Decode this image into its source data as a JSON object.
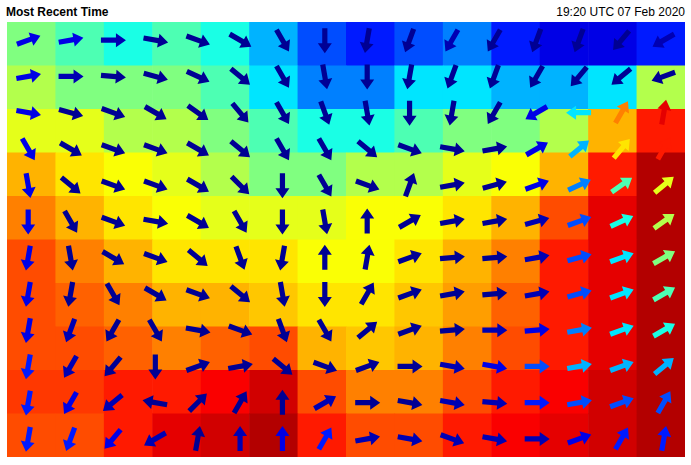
{
  "chart_data": {
    "type": "vector_field",
    "title": "Most Recent Time",
    "subtitle": "19:20 UTC 07 Feb 2020",
    "tick_labels": false,
    "field": [
      [
        0.5,
        0.45,
        0.4,
        0.45,
        0.4,
        0.3,
        0.2,
        0.15,
        0.2,
        0.25,
        0.15,
        0.1,
        0.1,
        0.15
      ],
      [
        0.55,
        0.5,
        0.5,
        0.5,
        0.45,
        0.35,
        0.25,
        0.25,
        0.35,
        0.35,
        0.3,
        0.3,
        0.35,
        0.55
      ],
      [
        0.6,
        0.6,
        0.55,
        0.55,
        0.5,
        0.45,
        0.4,
        0.4,
        0.45,
        0.5,
        0.5,
        0.55,
        0.7,
        0.85
      ],
      [
        0.7,
        0.65,
        0.62,
        0.6,
        0.55,
        0.5,
        0.5,
        0.55,
        0.55,
        0.6,
        0.62,
        0.7,
        0.85,
        0.95
      ],
      [
        0.75,
        0.7,
        0.65,
        0.62,
        0.6,
        0.6,
        0.6,
        0.62,
        0.62,
        0.65,
        0.7,
        0.8,
        0.9,
        0.95
      ],
      [
        0.8,
        0.75,
        0.7,
        0.65,
        0.65,
        0.65,
        0.62,
        0.62,
        0.65,
        0.7,
        0.75,
        0.85,
        0.9,
        0.95
      ],
      [
        0.8,
        0.78,
        0.75,
        0.7,
        0.7,
        0.68,
        0.65,
        0.65,
        0.68,
        0.72,
        0.78,
        0.85,
        0.9,
        0.95
      ],
      [
        0.8,
        0.8,
        0.78,
        0.75,
        0.78,
        0.8,
        0.7,
        0.68,
        0.7,
        0.75,
        0.8,
        0.85,
        0.9,
        0.95
      ],
      [
        0.82,
        0.82,
        0.85,
        0.85,
        0.88,
        0.92,
        0.8,
        0.75,
        0.75,
        0.8,
        0.85,
        0.88,
        0.92,
        0.95
      ],
      [
        0.8,
        0.8,
        0.85,
        0.9,
        0.92,
        0.95,
        0.85,
        0.8,
        0.8,
        0.85,
        0.88,
        0.9,
        0.92,
        0.95
      ]
    ],
    "vectors": {
      "angle": [
        [
          20,
          10,
          0,
          -10,
          -20,
          -30,
          -60,
          -90,
          -100,
          -110,
          -120,
          -120,
          -110,
          -110,
          -130,
          -150
        ],
        [
          10,
          0,
          -5,
          -15,
          -25,
          -40,
          -60,
          -80,
          -90,
          -100,
          -110,
          -110,
          -120,
          -130,
          -140,
          -160
        ],
        [
          -10,
          -15,
          -20,
          -30,
          -35,
          -50,
          -60,
          -70,
          -80,
          -90,
          -100,
          -120,
          -150,
          180,
          60,
          80
        ],
        [
          -60,
          -30,
          -20,
          -20,
          -30,
          -40,
          -60,
          -60,
          -40,
          -20,
          -10,
          10,
          30,
          40,
          50,
          60
        ],
        [
          -80,
          -40,
          -20,
          -20,
          -30,
          -45,
          -90,
          -60,
          -20,
          70,
          10,
          15,
          20,
          25,
          35,
          40
        ],
        [
          -90,
          -60,
          -20,
          -10,
          -30,
          -60,
          -90,
          -80,
          90,
          30,
          10,
          10,
          15,
          20,
          25,
          35
        ],
        [
          -100,
          -80,
          -30,
          -20,
          -40,
          -70,
          -100,
          90,
          80,
          20,
          5,
          5,
          10,
          15,
          20,
          30
        ],
        [
          -100,
          -100,
          -60,
          -30,
          -20,
          -40,
          -80,
          -90,
          60,
          20,
          10,
          5,
          10,
          15,
          20,
          30
        ],
        [
          -100,
          -110,
          -120,
          -60,
          -10,
          -20,
          -70,
          -60,
          40,
          20,
          5,
          0,
          5,
          10,
          20,
          30
        ],
        [
          -100,
          -120,
          -130,
          -90,
          20,
          10,
          -40,
          -20,
          20,
          0,
          -10,
          -10,
          0,
          10,
          20,
          40
        ],
        [
          -100,
          -120,
          -140,
          170,
          45,
          60,
          90,
          30,
          0,
          -10,
          -10,
          -5,
          0,
          10,
          20,
          60
        ],
        [
          -100,
          -110,
          -130,
          -150,
          80,
          90,
          90,
          60,
          10,
          -10,
          -20,
          -10,
          0,
          20,
          60,
          80
        ]
      ],
      "level": [
        [
          0.1,
          0.1,
          0.05,
          0.02,
          0.02,
          0.02,
          0.02,
          0.02,
          0.02,
          0.02,
          0.05,
          0.02,
          0.02,
          0.02,
          0.02,
          0.05
        ],
        [
          0.1,
          0.05,
          0.02,
          0.02,
          0.02,
          0.02,
          0.02,
          0.02,
          0.02,
          0.02,
          0.02,
          0.02,
          0.02,
          0.02,
          0.02,
          0.02
        ],
        [
          0.1,
          0.02,
          0.02,
          0.02,
          0.02,
          0.02,
          0.02,
          0.02,
          0.02,
          0.02,
          0.02,
          0.02,
          0.1,
          0.35,
          0.75,
          0.9
        ],
        [
          0.1,
          0.02,
          0.02,
          0.02,
          0.02,
          0.02,
          0.02,
          0.02,
          0.02,
          0.02,
          0.02,
          0.02,
          0.1,
          0.3,
          0.65,
          0.85
        ],
        [
          0.1,
          0.02,
          0.02,
          0.02,
          0.02,
          0.02,
          0.02,
          0.02,
          0.02,
          0.02,
          0.02,
          0.02,
          0.1,
          0.25,
          0.45,
          0.6
        ],
        [
          0.1,
          0.02,
          0.02,
          0.02,
          0.02,
          0.02,
          0.02,
          0.02,
          0.02,
          0.02,
          0.02,
          0.02,
          0.05,
          0.2,
          0.4,
          0.55
        ],
        [
          0.1,
          0.02,
          0.02,
          0.02,
          0.02,
          0.02,
          0.02,
          0.02,
          0.02,
          0.02,
          0.02,
          0.02,
          0.05,
          0.2,
          0.35,
          0.5
        ],
        [
          0.1,
          0.02,
          0.02,
          0.02,
          0.02,
          0.02,
          0.02,
          0.02,
          0.02,
          0.02,
          0.02,
          0.02,
          0.05,
          0.2,
          0.35,
          0.45
        ],
        [
          0.1,
          0.05,
          0.02,
          0.02,
          0.02,
          0.02,
          0.02,
          0.02,
          0.02,
          0.02,
          0.02,
          0.05,
          0.1,
          0.25,
          0.35,
          0.4
        ],
        [
          0.15,
          0.05,
          0.02,
          0.02,
          0.02,
          0.02,
          0.02,
          0.02,
          0.02,
          0.02,
          0.05,
          0.1,
          0.2,
          0.3,
          0.3,
          0.3
        ],
        [
          0.15,
          0.1,
          0.05,
          0.02,
          0.02,
          0.02,
          0.02,
          0.05,
          0.02,
          0.02,
          0.05,
          0.05,
          0.15,
          0.2,
          0.2,
          0.2
        ],
        [
          0.15,
          0.15,
          0.1,
          0.05,
          0.02,
          0.05,
          0.1,
          0.15,
          0.05,
          0.05,
          0.05,
          0.05,
          0.05,
          0.1,
          0.15,
          0.15
        ]
      ]
    }
  }
}
